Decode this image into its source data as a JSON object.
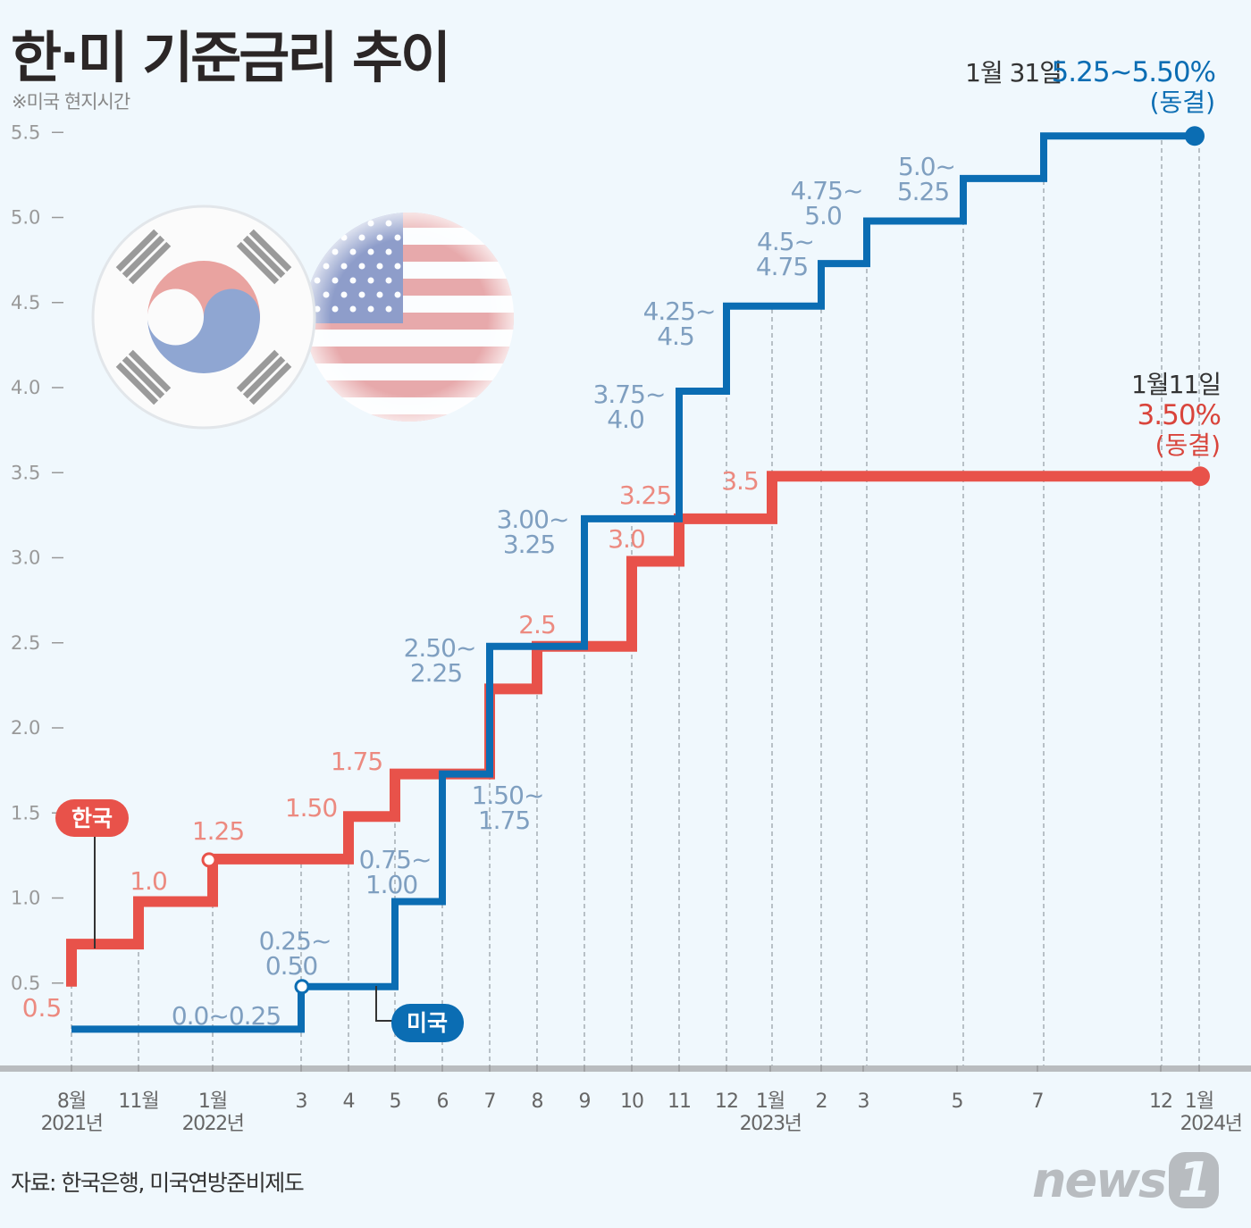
{
  "title": "한·미 기준금리 추이",
  "subtitle": "※미국 현지시간",
  "source": "자료: 한국은행, 미국연방준비제도",
  "logo": {
    "text": "news",
    "mark": "1"
  },
  "colors": {
    "korea": "#e8524a",
    "us": "#0b6db3",
    "korea_label": "#ec8a80",
    "us_label": "#7f9fc0",
    "background": "#f0f8fd"
  },
  "chart_data": {
    "type": "line",
    "subtype": "step",
    "ylim": [
      0.25,
      5.5
    ],
    "y_ticks": [
      "0.5",
      "1.0",
      "1.5",
      "2.0",
      "2.5",
      "3.0",
      "3.5",
      "4.0",
      "4.5",
      "5.0",
      "5.5"
    ],
    "x_ticks": [
      {
        "month": "8월",
        "year": "2021년"
      },
      {
        "month": "11월",
        "year": ""
      },
      {
        "month": "1월",
        "year": "2022년"
      },
      {
        "month": "3",
        "year": ""
      },
      {
        "month": "4",
        "year": ""
      },
      {
        "month": "5",
        "year": ""
      },
      {
        "month": "6",
        "year": ""
      },
      {
        "month": "7",
        "year": ""
      },
      {
        "month": "8",
        "year": ""
      },
      {
        "month": "9",
        "year": ""
      },
      {
        "month": "10",
        "year": ""
      },
      {
        "month": "11",
        "year": ""
      },
      {
        "month": "12",
        "year": ""
      },
      {
        "month": "1월",
        "year": "2023년"
      },
      {
        "month": "2",
        "year": ""
      },
      {
        "month": "3",
        "year": ""
      },
      {
        "month": "5",
        "year": ""
      },
      {
        "month": "7",
        "year": ""
      },
      {
        "month": "12",
        "year": ""
      },
      {
        "month": "1월",
        "year": "2024년"
      }
    ],
    "series": [
      {
        "name": "한국",
        "start": {
          "date": "2021-08",
          "value": 0.5
        },
        "steps": [
          {
            "date": "2021-08",
            "value": 0.75,
            "label": ""
          },
          {
            "date": "2021-11",
            "value": 1.0,
            "label": "1.0"
          },
          {
            "date": "2022-01",
            "value": 1.25,
            "label": "1.25"
          },
          {
            "date": "2022-04",
            "value": 1.5,
            "label": "1.50"
          },
          {
            "date": "2022-05",
            "value": 1.75,
            "label": "1.75"
          },
          {
            "date": "2022-07",
            "value": 2.25,
            "label": ""
          },
          {
            "date": "2022-08",
            "value": 2.5,
            "label": "2.5"
          },
          {
            "date": "2022-10",
            "value": 3.0,
            "label": "3.0"
          },
          {
            "date": "2022-11",
            "value": 3.25,
            "label": "3.25"
          },
          {
            "date": "2023-01",
            "value": 3.5,
            "label": "3.5"
          }
        ],
        "start_label": "0.5",
        "end": {
          "date": "2024-01",
          "value": 3.5
        },
        "annotation": {
          "date": "1월11일",
          "rate": "3.50%",
          "note": "(동결)"
        }
      },
      {
        "name": "미국",
        "start": {
          "date": "2021-08",
          "value": 0.25
        },
        "start_label": "0.0~0.25",
        "steps": [
          {
            "date": "2022-03",
            "value": 0.5,
            "label": [
              "0.25~",
              "0.50"
            ]
          },
          {
            "date": "2022-05",
            "value": 1.0,
            "label": [
              "0.75~",
              "1.00"
            ]
          },
          {
            "date": "2022-06",
            "value": 1.75,
            "label": [
              "1.50~",
              "1.75"
            ]
          },
          {
            "date": "2022-07",
            "value": 2.5,
            "label": [
              "2.50~",
              "2.25"
            ]
          },
          {
            "date": "2022-09",
            "value": 3.25,
            "label": [
              "3.00~",
              "3.25"
            ]
          },
          {
            "date": "2022-11",
            "value": 4.0,
            "label": [
              "3.75~",
              "4.0"
            ]
          },
          {
            "date": "2022-12",
            "value": 4.5,
            "label": [
              "4.25~",
              "4.5"
            ]
          },
          {
            "date": "2023-02",
            "value": 4.75,
            "label": [
              "4.5~",
              "4.75"
            ]
          },
          {
            "date": "2023-03",
            "value": 5.0,
            "label": [
              "4.75~",
              "5.0"
            ]
          },
          {
            "date": "2023-05",
            "value": 5.25,
            "label": [
              "5.0~",
              "5.25"
            ]
          },
          {
            "date": "2023-07",
            "value": 5.5,
            "label": [
              "",
              ""
            ]
          }
        ],
        "end": {
          "date": "2024-01",
          "value": 5.5
        },
        "annotation": {
          "date": "1월 31일",
          "rate": "5.25~5.50%",
          "note": "(동결)"
        }
      }
    ]
  }
}
